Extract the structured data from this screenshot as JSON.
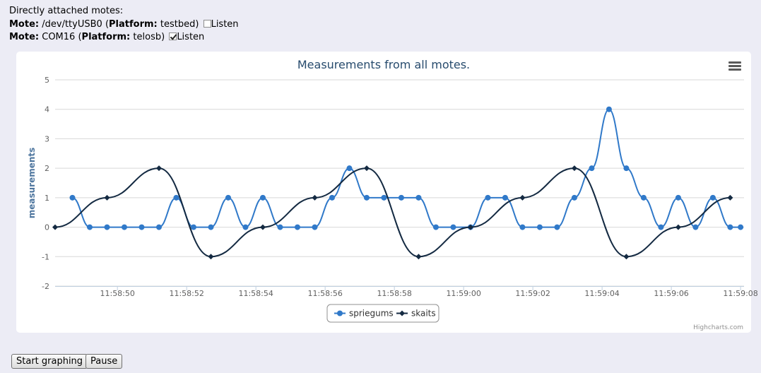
{
  "motes": {
    "heading": "Directly attached motes:",
    "mote_label": "Mote:",
    "platform_label": "Platform:",
    "listen_label": "Listen",
    "items": [
      {
        "device": "/dev/ttyUSB0",
        "platform": "testbed",
        "listen": false
      },
      {
        "device": "COM16",
        "platform": "telosb",
        "listen": true
      }
    ]
  },
  "buttons": {
    "start": "Start graphing",
    "pause": "Pause"
  },
  "credits": "Highcharts.com",
  "colors": {
    "series1": "#3079c9",
    "series2": "#142a42",
    "title": "#274b6d",
    "axis_title": "#4d759e"
  },
  "chart_data": {
    "type": "line",
    "title": "Measurements from all motes.",
    "ylabel": "measurements",
    "ylim": [
      -2,
      5
    ],
    "yticks": [
      -2,
      -1,
      0,
      1,
      2,
      3,
      4,
      5
    ],
    "xlim": [
      "11:58:48.2",
      "11:59:08.1"
    ],
    "xtick_labels": [
      "11:58:50",
      "11:58:52",
      "11:58:54",
      "11:58:56",
      "11:58:58",
      "11:59:00",
      "11:59:02",
      "11:59:04",
      "11:59:06",
      "11:59:08"
    ],
    "grid": true,
    "legend": "bottom-center",
    "series": [
      {
        "name": "spriegums",
        "marker": "circle",
        "x": [
          "11:58:48.7",
          "11:58:49.2",
          "11:58:49.7",
          "11:58:50.2",
          "11:58:50.7",
          "11:58:51.2",
          "11:58:51.7",
          "11:58:52.2",
          "11:58:52.7",
          "11:58:53.2",
          "11:58:53.7",
          "11:58:54.2",
          "11:58:54.7",
          "11:58:55.2",
          "11:58:55.7",
          "11:58:56.2",
          "11:58:56.7",
          "11:58:57.2",
          "11:58:57.7",
          "11:58:58.2",
          "11:58:58.7",
          "11:58:59.2",
          "11:58:59.7",
          "11:59:00.2",
          "11:59:00.7",
          "11:59:01.2",
          "11:59:01.7",
          "11:59:02.2",
          "11:59:02.7",
          "11:59:03.2",
          "11:59:03.7",
          "11:59:04.2",
          "11:59:04.7",
          "11:59:05.2",
          "11:59:05.7",
          "11:59:06.2",
          "11:59:06.7",
          "11:59:07.2",
          "11:59:07.7",
          "11:59:08.0"
        ],
        "y": [
          1,
          0,
          0,
          0,
          0,
          0,
          1,
          0,
          0,
          1,
          0,
          1,
          0,
          0,
          0,
          1,
          2,
          1,
          1,
          1,
          1,
          0,
          0,
          0,
          1,
          1,
          0,
          0,
          0,
          1,
          2,
          4,
          2,
          1,
          0,
          1,
          0,
          1,
          0,
          0
        ]
      },
      {
        "name": "skaits",
        "marker": "diamond",
        "x": [
          "11:58:48.2",
          "11:58:49.7",
          "11:58:51.2",
          "11:58:52.7",
          "11:58:54.2",
          "11:58:55.7",
          "11:58:57.2",
          "11:58:58.7",
          "11:59:00.2",
          "11:59:01.7",
          "11:59:03.2",
          "11:59:04.7",
          "11:59:06.2",
          "11:59:07.7"
        ],
        "y": [
          0,
          1,
          2,
          -1,
          0,
          1,
          2,
          -1,
          0,
          1,
          2,
          -1,
          0,
          1
        ]
      }
    ]
  }
}
